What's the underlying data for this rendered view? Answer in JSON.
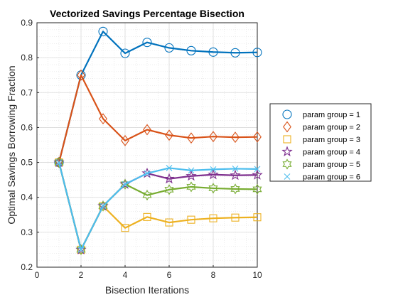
{
  "chart_data": {
    "type": "line",
    "title": "Vectorized Savings Percentage Bisection",
    "xlabel": "Bisection Iterations",
    "ylabel": "Optimal Savings Borrowing Fraction",
    "xlim": [
      0,
      10
    ],
    "ylim": [
      0.2,
      0.9
    ],
    "xticks": [
      0,
      2,
      4,
      6,
      8,
      10
    ],
    "yticks": [
      0.2,
      0.3,
      0.4,
      0.5,
      0.6,
      0.7,
      0.8,
      0.9
    ],
    "xtick_labels": [
      "0",
      "2",
      "4",
      "6",
      "8",
      "10"
    ],
    "ytick_labels": [
      "0.2",
      "0.3",
      "0.4",
      "0.5",
      "0.6",
      "0.7",
      "0.8",
      "0.9"
    ],
    "grid": true,
    "minor_grid": true,
    "legend_position": "outside-right",
    "x": [
      1,
      2,
      3,
      4,
      5,
      6,
      7,
      8,
      9,
      10
    ],
    "series": [
      {
        "name": "param group =  1",
        "color": "#0072BD",
        "marker": "circle",
        "values": [
          0.5,
          0.75,
          0.875,
          0.8125,
          0.84375,
          0.828,
          0.82,
          0.816,
          0.814,
          0.815
        ]
      },
      {
        "name": "param group =  2",
        "color": "#D95319",
        "marker": "diamond",
        "values": [
          0.5,
          0.75,
          0.625,
          0.5625,
          0.59375,
          0.578,
          0.57,
          0.574,
          0.572,
          0.573
        ]
      },
      {
        "name": "param group =  3",
        "color": "#EDB120",
        "marker": "square",
        "values": [
          0.5,
          0.25,
          0.375,
          0.3125,
          0.34375,
          0.328,
          0.336,
          0.34,
          0.342,
          0.343
        ]
      },
      {
        "name": "param group =  4",
        "color": "#7E2F8E",
        "marker": "pentagram",
        "values": [
          0.5,
          0.25,
          0.375,
          0.4375,
          0.46875,
          0.453,
          0.461,
          0.465,
          0.463,
          0.464
        ]
      },
      {
        "name": "param group =  5",
        "color": "#77AC30",
        "marker": "hexagram",
        "values": [
          0.5,
          0.25,
          0.375,
          0.4375,
          0.40625,
          0.422,
          0.43,
          0.426,
          0.424,
          0.423
        ]
      },
      {
        "name": "param group =  6",
        "color": "#4DBEEE",
        "marker": "x",
        "values": [
          0.5,
          0.25,
          0.375,
          0.4375,
          0.46875,
          0.484,
          0.477,
          0.48,
          0.482,
          0.481
        ]
      }
    ]
  }
}
